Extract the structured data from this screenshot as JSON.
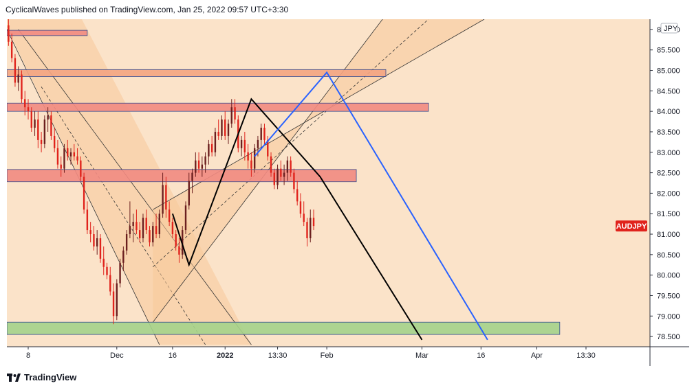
{
  "header": {
    "publisher_line": "CyclicalWaves published on TradingView.com, Jan 25, 2022 09:57 UTC+3:30"
  },
  "footer": {
    "brand": "TradingView"
  },
  "chart_data": {
    "type": "candlestick",
    "symbol_label": "AUDJPY",
    "currency_label": "JPY",
    "last_price": 81.2,
    "ylim": [
      78.25,
      86.25
    ],
    "y_ticks": [
      "86.000",
      "85.500",
      "85.000",
      "84.500",
      "84.000",
      "83.500",
      "83.000",
      "82.500",
      "82.000",
      "81.500",
      "81.000",
      "80.500",
      "80.000",
      "79.500",
      "79.000",
      "78.500"
    ],
    "x_ticks": [
      "8",
      "Dec",
      "16",
      "2022",
      "13:30",
      "Feb",
      "Mar",
      "16",
      "Apr",
      "13:30"
    ],
    "x_tick_bars": [
      6,
      33,
      50,
      66,
      82,
      97,
      126,
      144,
      161,
      176
    ],
    "total_bars": 196,
    "price_zones": [
      {
        "bar_start": 0,
        "bar_end": 24,
        "low": 85.85,
        "high": 85.98,
        "color": "#f28b82"
      },
      {
        "bar_start": 0,
        "bar_end": 115,
        "low": 84.85,
        "high": 85.02,
        "color": "#f4a582"
      },
      {
        "bar_start": 0,
        "bar_end": 128,
        "low": 84.0,
        "high": 84.2,
        "color": "#f28b82"
      },
      {
        "bar_start": 0,
        "bar_end": 106,
        "low": 82.28,
        "high": 82.58,
        "color": "#f28b82"
      },
      {
        "bar_start": 0,
        "bar_end": 168,
        "low": 78.55,
        "high": 78.85,
        "color": "#a5d38b"
      }
    ],
    "trend_lines": [
      {
        "name": "black-wave",
        "color": "#000000",
        "points": [
          [
            50,
            81.5
          ],
          [
            55,
            80.25
          ],
          [
            74,
            84.3
          ],
          [
            95,
            82.4
          ],
          [
            126,
            78.42
          ]
        ]
      },
      {
        "name": "blue-wave",
        "color": "#2962ff",
        "points": [
          [
            75,
            82.9
          ],
          [
            97,
            84.95
          ],
          [
            146,
            78.42
          ]
        ]
      }
    ],
    "candles": [
      [
        86.1,
        86.25,
        85.6,
        85.7
      ],
      [
        85.7,
        85.9,
        85.2,
        85.3
      ],
      [
        85.3,
        85.4,
        84.6,
        84.7
      ],
      [
        84.7,
        85.1,
        84.5,
        84.9
      ],
      [
        84.9,
        85.0,
        84.2,
        84.3
      ],
      [
        84.3,
        84.5,
        83.9,
        84.1
      ],
      [
        84.1,
        84.3,
        83.8,
        84.0
      ],
      [
        84.0,
        84.1,
        83.5,
        83.6
      ],
      [
        83.6,
        84.0,
        83.4,
        83.8
      ],
      [
        83.8,
        84.0,
        83.1,
        83.3
      ],
      [
        83.3,
        83.5,
        83.0,
        83.2
      ],
      [
        83.2,
        83.9,
        83.1,
        83.8
      ],
      [
        83.8,
        84.1,
        83.5,
        83.9
      ],
      [
        83.9,
        84.0,
        83.3,
        83.4
      ],
      [
        83.4,
        83.6,
        83.0,
        83.1
      ],
      [
        83.1,
        83.3,
        82.6,
        82.7
      ],
      [
        82.7,
        82.9,
        82.4,
        82.6
      ],
      [
        82.6,
        83.2,
        82.5,
        83.1
      ],
      [
        83.1,
        83.3,
        82.8,
        82.9
      ],
      [
        82.9,
        83.1,
        82.7,
        83.0
      ],
      [
        83.0,
        83.2,
        82.8,
        82.9
      ],
      [
        82.9,
        83.1,
        82.7,
        82.8
      ],
      [
        82.8,
        82.9,
        82.3,
        82.4
      ],
      [
        82.4,
        82.5,
        81.5,
        81.6
      ],
      [
        81.6,
        81.8,
        81.0,
        81.1
      ],
      [
        81.1,
        81.3,
        80.8,
        81.0
      ],
      [
        81.0,
        81.2,
        80.6,
        80.7
      ],
      [
        80.7,
        81.1,
        80.5,
        80.9
      ],
      [
        80.9,
        81.0,
        80.3,
        80.4
      ],
      [
        80.4,
        80.7,
        80.0,
        80.2
      ],
      [
        80.2,
        80.3,
        79.9,
        80.0
      ],
      [
        80.0,
        80.2,
        79.5,
        79.6
      ],
      [
        79.6,
        79.8,
        78.8,
        79.0
      ],
      [
        79.0,
        79.9,
        78.9,
        79.8
      ],
      [
        79.8,
        80.4,
        79.7,
        80.3
      ],
      [
        80.3,
        80.7,
        80.1,
        80.6
      ],
      [
        80.6,
        81.1,
        80.5,
        81.0
      ],
      [
        81.0,
        81.8,
        80.9,
        81.2
      ],
      [
        81.2,
        81.5,
        80.8,
        81.3
      ],
      [
        81.3,
        81.6,
        81.0,
        81.1
      ],
      [
        81.1,
        81.3,
        80.8,
        80.9
      ],
      [
        80.9,
        81.5,
        80.8,
        81.4
      ],
      [
        81.4,
        81.6,
        81.0,
        81.1
      ],
      [
        81.1,
        81.2,
        80.7,
        80.8
      ],
      [
        80.8,
        81.3,
        80.7,
        81.2
      ],
      [
        81.2,
        81.5,
        80.9,
        81.0
      ],
      [
        81.0,
        81.6,
        80.9,
        81.5
      ],
      [
        81.5,
        82.5,
        81.4,
        82.2
      ],
      [
        82.2,
        82.4,
        81.4,
        81.6
      ],
      [
        81.6,
        81.8,
        81.2,
        81.3
      ],
      [
        81.3,
        81.4,
        80.9,
        81.0
      ],
      [
        81.0,
        81.1,
        80.6,
        80.7
      ],
      [
        80.7,
        80.9,
        80.3,
        80.5
      ],
      [
        80.5,
        81.2,
        80.4,
        81.1
      ],
      [
        81.1,
        81.8,
        81.0,
        81.7
      ],
      [
        81.7,
        82.5,
        81.6,
        82.3
      ],
      [
        82.3,
        82.6,
        82.0,
        82.5
      ],
      [
        82.5,
        83.0,
        82.4,
        82.8
      ],
      [
        82.8,
        83.0,
        82.5,
        82.6
      ],
      [
        82.6,
        82.9,
        82.4,
        82.7
      ],
      [
        82.7,
        83.0,
        82.5,
        82.9
      ],
      [
        82.9,
        83.3,
        82.7,
        83.2
      ],
      [
        83.2,
        83.4,
        82.9,
        83.0
      ],
      [
        83.0,
        83.6,
        82.9,
        83.5
      ],
      [
        83.5,
        83.8,
        83.3,
        83.4
      ],
      [
        83.4,
        83.9,
        83.3,
        83.8
      ],
      [
        83.8,
        84.0,
        83.3,
        83.4
      ],
      [
        83.4,
        83.8,
        83.2,
        83.7
      ],
      [
        83.7,
        84.3,
        83.6,
        84.1
      ],
      [
        84.1,
        84.3,
        83.7,
        83.8
      ],
      [
        83.8,
        83.9,
        83.0,
        83.1
      ],
      [
        83.1,
        83.4,
        82.9,
        83.3
      ],
      [
        83.3,
        83.5,
        82.8,
        83.0
      ],
      [
        83.0,
        83.2,
        82.6,
        82.8
      ],
      [
        82.8,
        83.0,
        82.4,
        82.6
      ],
      [
        82.6,
        83.2,
        82.5,
        83.1
      ],
      [
        83.1,
        83.4,
        82.9,
        83.3
      ],
      [
        83.3,
        83.7,
        83.1,
        83.6
      ],
      [
        83.6,
        83.7,
        83.2,
        83.3
      ],
      [
        83.3,
        83.4,
        82.8,
        82.9
      ],
      [
        82.9,
        83.0,
        82.4,
        82.5
      ],
      [
        82.5,
        82.6,
        82.1,
        82.2
      ],
      [
        82.2,
        82.7,
        82.1,
        82.6
      ],
      [
        82.6,
        82.8,
        82.3,
        82.4
      ],
      [
        82.4,
        82.7,
        82.2,
        82.5
      ],
      [
        82.5,
        82.9,
        82.3,
        82.8
      ],
      [
        82.8,
        82.9,
        82.4,
        82.5
      ],
      [
        82.5,
        82.6,
        82.0,
        82.1
      ],
      [
        82.1,
        82.3,
        81.7,
        81.8
      ],
      [
        81.8,
        82.0,
        81.4,
        81.5
      ],
      [
        81.5,
        81.8,
        81.2,
        81.3
      ],
      [
        81.3,
        81.4,
        80.7,
        80.9
      ],
      [
        80.9,
        81.6,
        80.8,
        81.4
      ],
      [
        81.4,
        81.6,
        81.1,
        81.2
      ]
    ]
  },
  "colors": {
    "background": "#fbe3c9",
    "channel_fill": "#f8c999",
    "candle_up": "#6b1f1f",
    "candle_down": "#e0231c",
    "price_badge": "#e0231c"
  }
}
